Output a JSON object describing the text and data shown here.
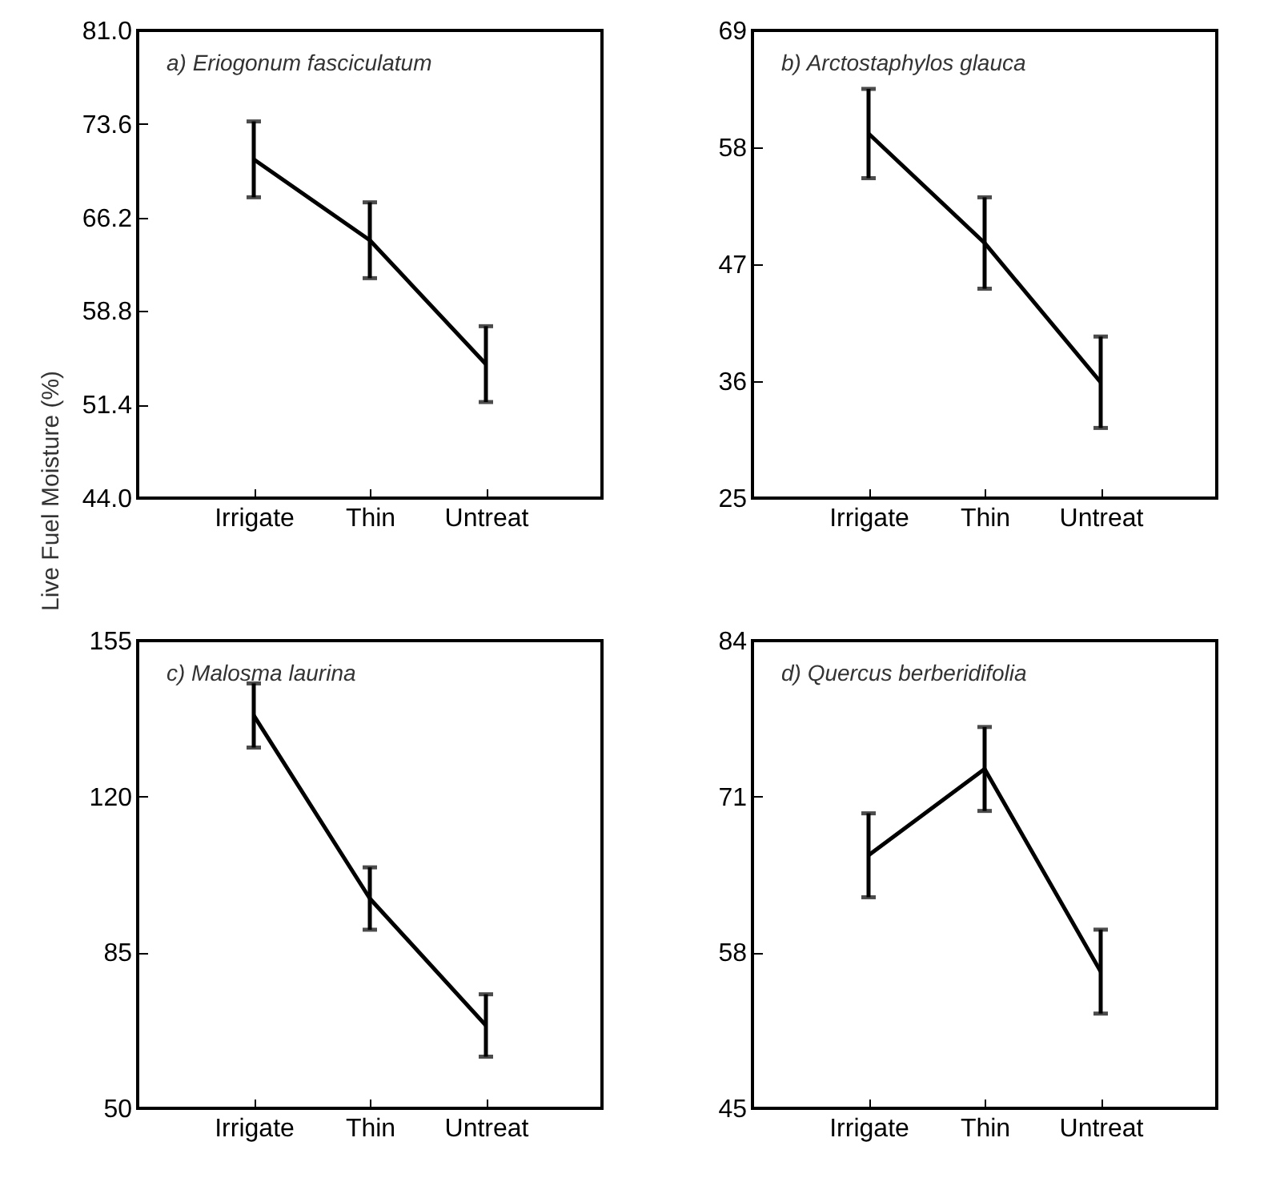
{
  "chart_data": [
    {
      "type": "line",
      "title": "a)   Eriogonum fasciculatum",
      "ylabel": "Live Fuel Moisture (%)",
      "categories": [
        "Irrigate",
        "Thin",
        "Untreat"
      ],
      "series": [
        {
          "color": "#000000",
          "values": [
            70.8,
            64.4,
            54.6
          ],
          "errors": [
            3.0,
            3.0,
            3.0
          ]
        }
      ],
      "ylim": [
        44,
        81
      ],
      "yticks": [
        {
          "value": 44,
          "label": "44.0"
        },
        51.4,
        58.8,
        66.2,
        73.6,
        {
          "value": 81,
          "label": "81.0"
        }
      ],
      "grid": false
    },
    {
      "type": "line",
      "title": "b)   Arctostaphylos glauca",
      "categories": [
        "Irrigate",
        "Thin",
        "Untreat"
      ],
      "series": [
        {
          "color": "#000000",
          "values": [
            59.3,
            49.0,
            35.9
          ],
          "errors": [
            4.2,
            4.3,
            4.3
          ]
        }
      ],
      "ylim": [
        25,
        69
      ],
      "yticks": [
        25,
        36,
        47,
        58,
        69
      ],
      "grid": false
    },
    {
      "type": "line",
      "title": "c)   Malosma laurina",
      "categories": [
        "Irrigate",
        "Thin",
        "Untreat"
      ],
      "series": [
        {
          "color": "#000000",
          "values": [
            138.2,
            97.1,
            68.6
          ],
          "errors": [
            7.2,
            7.0,
            7.0
          ]
        }
      ],
      "ylim": [
        50,
        155
      ],
      "yticks": [
        50,
        85,
        120,
        155
      ],
      "grid": false
    },
    {
      "type": "line",
      "title": "d)   Quercus berberidifolia",
      "categories": [
        "Irrigate",
        "Thin",
        "Untreat"
      ],
      "series": [
        {
          "color": "#000000",
          "values": [
            66.1,
            73.3,
            56.4
          ],
          "errors": [
            3.5,
            3.5,
            3.5
          ]
        }
      ],
      "ylim": [
        45,
        84
      ],
      "yticks": [
        45,
        58,
        71,
        84
      ],
      "grid": false
    }
  ]
}
